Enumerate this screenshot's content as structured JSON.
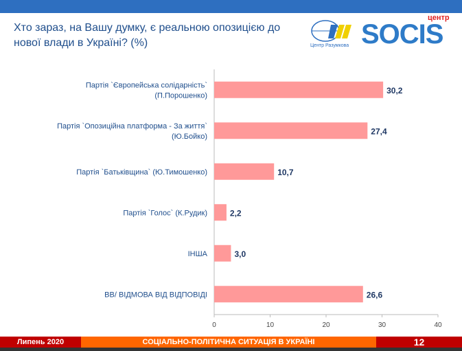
{
  "title": "Хто зараз, на Вашу думку, є реальною опозицією до нової влади в Україні? (%)",
  "logos": {
    "razumkov": "Центр Разумкова",
    "socis": "SOCIS",
    "socis_prefix": "центр"
  },
  "footer": {
    "date": "Липень 2020",
    "subject": "СОЦІАЛЬНО-ПОЛІТИЧНА СИТУАЦІЯ В УКРАЇНІ",
    "page": "12"
  },
  "colors": {
    "bar": "#ff9999",
    "header": "#2e6fc0",
    "footer_red": "#c00000",
    "footer_orange": "#ff6600"
  },
  "chart_data": {
    "type": "bar",
    "orientation": "horizontal",
    "categories": [
      [
        "Партія `Європейська солідарність`",
        "(П.Порошенко)"
      ],
      [
        "Партія `Опозиційна платформа - За життя`",
        "(Ю.Бойко)"
      ],
      [
        "Партія `Батьківщина` (Ю.Тимошенко)"
      ],
      [
        "Партія `Голос` (К.Рудик)"
      ],
      [
        "ІНША"
      ],
      [
        "ВВ/ ВІДМОВА ВІД ВІДПОВІДІ"
      ]
    ],
    "values": [
      30.2,
      27.4,
      10.7,
      2.2,
      3.0,
      26.6
    ],
    "data_labels": [
      "30,2",
      "27,4",
      "10,7",
      "2,2",
      "3,0",
      "26,6"
    ],
    "xlim": [
      0,
      40
    ],
    "xticks": [
      0,
      10,
      20,
      30,
      40
    ],
    "grid": false
  }
}
